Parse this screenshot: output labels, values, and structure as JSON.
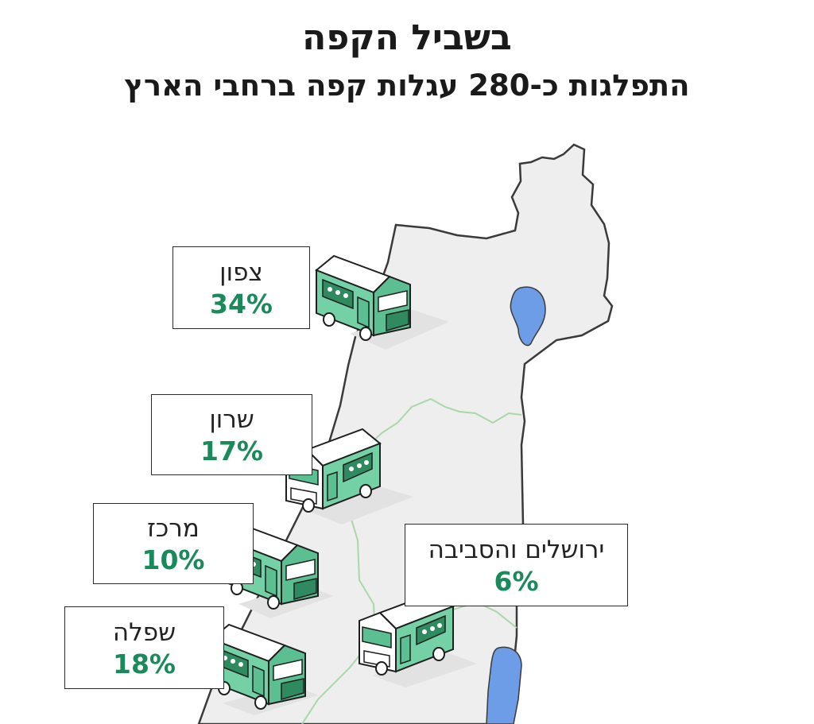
{
  "header": {
    "title": "בשביל הקפה",
    "subtitle": "התפלגות כ-280 עגלות קפה ברחבי הארץ"
  },
  "colors": {
    "map_fill": "#eeeeee",
    "map_stroke": "#3a3a3a",
    "water": "#6d9de6",
    "district_border": "#a9d8a8",
    "truck_body": "#74d1a6",
    "truck_dark": "#2f8a60",
    "accent": "#1a8a5b"
  },
  "regions": [
    {
      "id": "north",
      "name": "צפון",
      "percent": "34%"
    },
    {
      "id": "sharon",
      "name": "שרון",
      "percent": "17%"
    },
    {
      "id": "center",
      "name": "מרכז",
      "percent": "10%"
    },
    {
      "id": "jerusalem",
      "name": "ירושלים והסביבה",
      "percent": "6%"
    },
    {
      "id": "shfela",
      "name": "שפלה",
      "percent": "18%"
    }
  ]
}
